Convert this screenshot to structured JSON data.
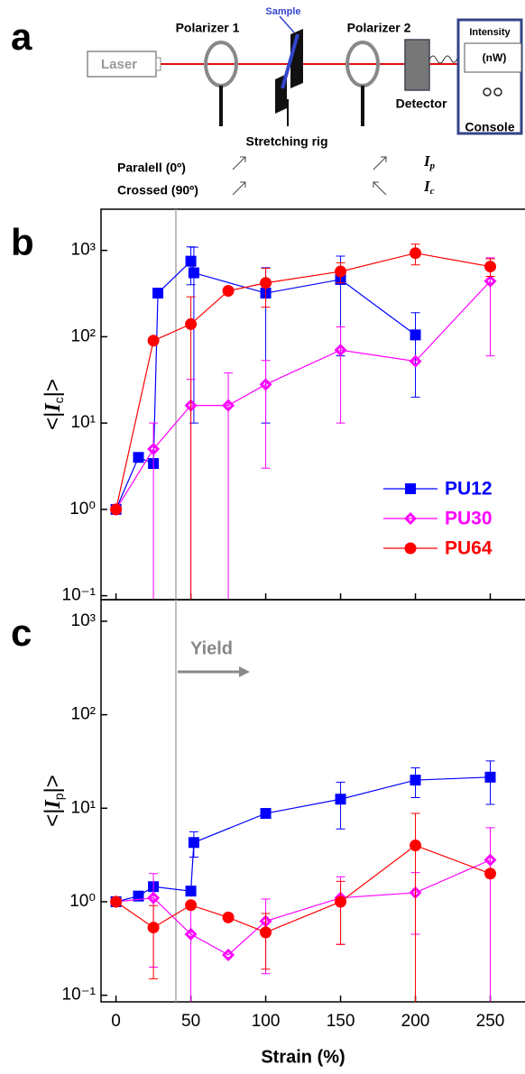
{
  "diagram": {
    "panel": "a",
    "laser": "Laser",
    "polarizer1": "Polarizer 1",
    "sample": "Sample",
    "polarizer2": "Polarizer 2",
    "detector": "Detector",
    "intensity": "Intensity",
    "unit": "(nW)",
    "console": "Console",
    "rig": "Stretching rig",
    "parallel": "Paralell (0º)",
    "crossed": "Crossed (90º)",
    "ip": {
      "symbol": "I",
      "subscript": "p"
    },
    "ic": {
      "symbol": "I",
      "subscript": "c"
    }
  },
  "chart_data": [
    {
      "type": "line",
      "panel": "b",
      "log_y": true,
      "legend": "lower right",
      "vline_x": 40,
      "ylabel": {
        "prefix": "<|",
        "symbol": "I",
        "subscript": "c",
        "suffix": "|>"
      },
      "xlim": [
        -10,
        275
      ],
      "xticks": [
        0,
        50,
        100,
        150,
        200,
        250
      ],
      "ylim": [
        0.09,
        3000
      ],
      "yticks": [
        {
          "value": 0.1,
          "label": "10⁻¹"
        },
        {
          "value": 1,
          "label": "10⁰"
        },
        {
          "value": 10,
          "label": "10¹"
        },
        {
          "value": 100,
          "label": "10²"
        },
        {
          "value": 1000,
          "label": "10³"
        }
      ],
      "series": [
        {
          "name": "PU12",
          "color": "#0000ff",
          "marker": "square",
          "x": [
            0,
            15,
            25,
            28,
            50,
            52,
            100,
            150,
            200
          ],
          "values": [
            1,
            4,
            3.4,
            320,
            750,
            550,
            320,
            460,
            105
          ],
          "errors": [
            null,
            null,
            null,
            null,
            350,
            540,
            310,
            400,
            85
          ]
        },
        {
          "name": "PU30",
          "color": "#ff00ff",
          "marker": "diamond",
          "x": [
            0,
            25,
            50,
            75,
            100,
            150,
            200,
            250
          ],
          "values": [
            1,
            5,
            16,
            16,
            28,
            70,
            52,
            440
          ],
          "errors": [
            null,
            5,
            16,
            22,
            25,
            60,
            null,
            380
          ]
        },
        {
          "name": "PU64",
          "color": "#ff0000",
          "marker": "circle",
          "x": [
            0,
            25,
            50,
            75,
            100,
            150,
            200,
            250
          ],
          "values": [
            1,
            90,
            140,
            340,
            420,
            570,
            930,
            650
          ],
          "errors": [
            null,
            null,
            150,
            null,
            200,
            150,
            250,
            150
          ]
        }
      ]
    },
    {
      "type": "line",
      "panel": "c",
      "log_y": true,
      "vline_x": 40,
      "annotation": "Yield",
      "xlabel": "Strain (%)",
      "ylabel": {
        "prefix": "<|",
        "symbol": "I",
        "subscript": "p",
        "suffix": "|>"
      },
      "xlim": [
        -10,
        275
      ],
      "xticks": [
        0,
        50,
        100,
        150,
        200,
        250
      ],
      "ylim": [
        0.085,
        1700
      ],
      "yticks": [
        {
          "value": 0.1,
          "label": "10⁻¹"
        },
        {
          "value": 1,
          "label": "10⁰"
        },
        {
          "value": 10,
          "label": "10¹"
        },
        {
          "value": 100,
          "label": "10²"
        },
        {
          "value": 1000,
          "label": "10³"
        }
      ],
      "series": [
        {
          "name": "PU12",
          "color": "#0000ff",
          "marker": "square",
          "x": [
            0,
            15,
            25,
            50,
            52,
            100,
            150,
            200,
            250
          ],
          "values": [
            1,
            1.15,
            1.45,
            1.3,
            4.3,
            8.8,
            12.5,
            20,
            21.5
          ],
          "errors": [
            null,
            null,
            null,
            null,
            1.3,
            null,
            6.5,
            7,
            10.5
          ]
        },
        {
          "name": "PU30",
          "color": "#ff00ff",
          "marker": "diamond",
          "x": [
            0,
            25,
            50,
            75,
            100,
            150,
            200,
            250
          ],
          "values": [
            1,
            1.1,
            0.45,
            0.27,
            0.62,
            1.1,
            1.25,
            2.8
          ],
          "errors": [
            null,
            0.9,
            0.5,
            null,
            0.45,
            0.75,
            0.8,
            3.4
          ]
        },
        {
          "name": "PU64",
          "color": "#ff0000",
          "marker": "circle",
          "x": [
            0,
            25,
            50,
            75,
            100,
            150,
            200,
            250
          ],
          "values": [
            1,
            0.53,
            0.92,
            0.68,
            0.47,
            1.0,
            4,
            2.0
          ],
          "errors": [
            null,
            0.38,
            null,
            null,
            0.28,
            0.65,
            4.8,
            null
          ]
        }
      ]
    }
  ]
}
